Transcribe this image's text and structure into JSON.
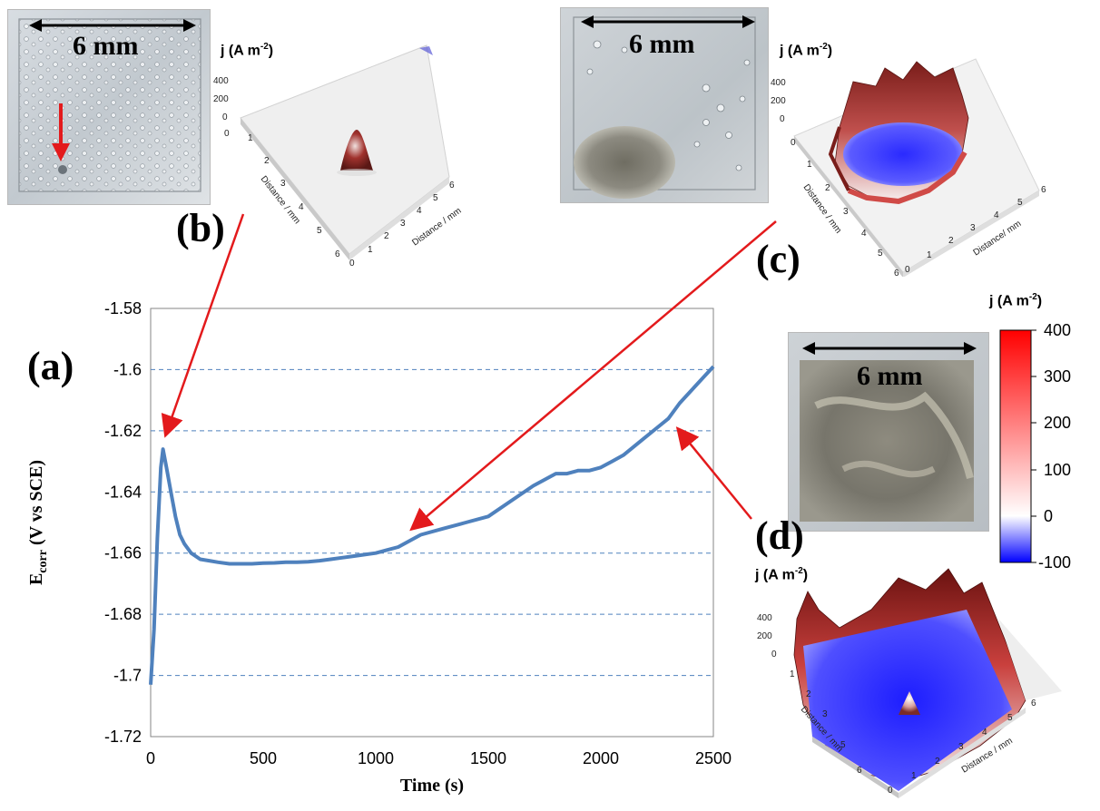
{
  "chart_data": {
    "type": "line",
    "panel_label": "(a)",
    "xlabel": "Time (s)",
    "ylabel_main": "E",
    "ylabel_sub": "corr",
    "ylabel_rest": " (V vs SCE)",
    "xlim": [
      0,
      2500
    ],
    "ylim": [
      -1.72,
      -1.58
    ],
    "xticks": [
      "0",
      "500",
      "1000",
      "1500",
      "2000",
      "2500"
    ],
    "yticks": [
      "-1.58",
      "-1.6",
      "-1.62",
      "-1.64",
      "-1.66",
      "-1.68",
      "-1.7",
      "-1.72"
    ],
    "grid": "horizontal dashed",
    "line_color": "#4f81bd",
    "x": [
      0,
      15,
      30,
      45,
      55,
      70,
      90,
      110,
      130,
      150,
      180,
      220,
      260,
      300,
      350,
      400,
      450,
      500,
      550,
      600,
      650,
      700,
      750,
      800,
      850,
      900,
      950,
      1000,
      1050,
      1100,
      1150,
      1200,
      1300,
      1400,
      1500,
      1600,
      1700,
      1800,
      1850,
      1900,
      1950,
      2000,
      2050,
      2100,
      2150,
      2200,
      2250,
      2300,
      2350,
      2400,
      2450,
      2500
    ],
    "y": [
      -1.703,
      -1.685,
      -1.655,
      -1.632,
      -1.626,
      -1.632,
      -1.64,
      -1.648,
      -1.654,
      -1.657,
      -1.66,
      -1.662,
      -1.6625,
      -1.663,
      -1.6635,
      -1.6635,
      -1.6635,
      -1.6633,
      -1.6632,
      -1.663,
      -1.663,
      -1.6628,
      -1.6625,
      -1.662,
      -1.6615,
      -1.661,
      -1.6605,
      -1.66,
      -1.659,
      -1.658,
      -1.656,
      -1.654,
      -1.652,
      -1.65,
      -1.648,
      -1.643,
      -1.638,
      -1.634,
      -1.634,
      -1.633,
      -1.633,
      -1.632,
      -1.63,
      -1.628,
      -1.625,
      -1.622,
      -1.619,
      -1.616,
      -1.611,
      -1.607,
      -1.603,
      -1.599
    ]
  },
  "panels": {
    "b": {
      "label": "(b)",
      "scale_bar": "6 mm"
    },
    "c": {
      "label": "(c)",
      "scale_bar": "6 mm"
    },
    "d": {
      "label": "(d)",
      "scale_bar": "6 mm"
    }
  },
  "plot3d": {
    "j_label": "j (A m",
    "j_sup": "-2",
    "j_close": ")",
    "z_ticks": [
      "400",
      "200",
      "0"
    ],
    "z_ticks_b": [
      "400",
      "200",
      "0",
      "0"
    ],
    "distance_label": "Distance / mm",
    "distance_label_c": "Distance/ mm",
    "axis_ticks": [
      "0",
      "1",
      "2",
      "3",
      "4",
      "5",
      "6"
    ]
  },
  "colorbar": {
    "title": "j (A m",
    "title_sup": "-2",
    "title_close": ")",
    "ticks": [
      "400",
      "300",
      "200",
      "100",
      "0",
      "-100"
    ],
    "top_color": "#ff0000",
    "mid_color": "#ffffff",
    "bottom_color": "#0000ff"
  },
  "arrow_color": "#e31a1c"
}
